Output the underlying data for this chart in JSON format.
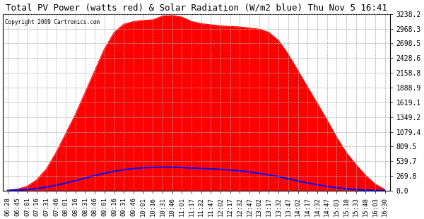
{
  "title": "Total PV Power (watts red) & Solar Radiation (W/m2 blue) Thu Nov 5 16:41",
  "copyright": "Copyright 2009 Cartronics.com",
  "background_color": "#ffffff",
  "plot_bg_color": "#ffffff",
  "grid_color": "#aaaaaa",
  "yticks": [
    0.0,
    269.8,
    539.7,
    809.5,
    1079.4,
    1349.2,
    1619.1,
    1888.9,
    2158.8,
    2428.6,
    2698.5,
    2968.3,
    3238.2
  ],
  "ymax": 3238.2,
  "ymin": 0.0,
  "pv_color": "#ff0000",
  "solar_color": "#0000ff",
  "xtick_labels": [
    "06:28",
    "06:45",
    "07:01",
    "07:16",
    "07:31",
    "07:46",
    "08:01",
    "08:16",
    "08:31",
    "08:46",
    "09:01",
    "09:16",
    "09:31",
    "09:46",
    "10:01",
    "10:16",
    "10:31",
    "10:46",
    "11:01",
    "11:17",
    "11:32",
    "11:47",
    "12:02",
    "12:17",
    "12:32",
    "12:47",
    "13:02",
    "13:17",
    "13:32",
    "13:47",
    "14:02",
    "14:17",
    "14:32",
    "14:47",
    "15:03",
    "15:18",
    "15:33",
    "15:48",
    "16:03",
    "16:30"
  ],
  "pv_raw": [
    10,
    30,
    80,
    200,
    400,
    700,
    1050,
    1400,
    1800,
    2200,
    2600,
    2900,
    3050,
    3100,
    3120,
    3130,
    3200,
    3210,
    3180,
    3100,
    3060,
    3040,
    3020,
    3010,
    3000,
    2980,
    2960,
    2900,
    2750,
    2500,
    2200,
    1900,
    1600,
    1300,
    980,
    700,
    480,
    280,
    120,
    20
  ],
  "solar_raw": [
    5,
    12,
    22,
    40,
    65,
    100,
    140,
    185,
    230,
    280,
    320,
    355,
    385,
    405,
    420,
    428,
    432,
    430,
    425,
    415,
    408,
    400,
    390,
    378,
    362,
    342,
    318,
    288,
    255,
    218,
    178,
    142,
    108,
    78,
    54,
    35,
    20,
    10,
    5,
    2
  ]
}
